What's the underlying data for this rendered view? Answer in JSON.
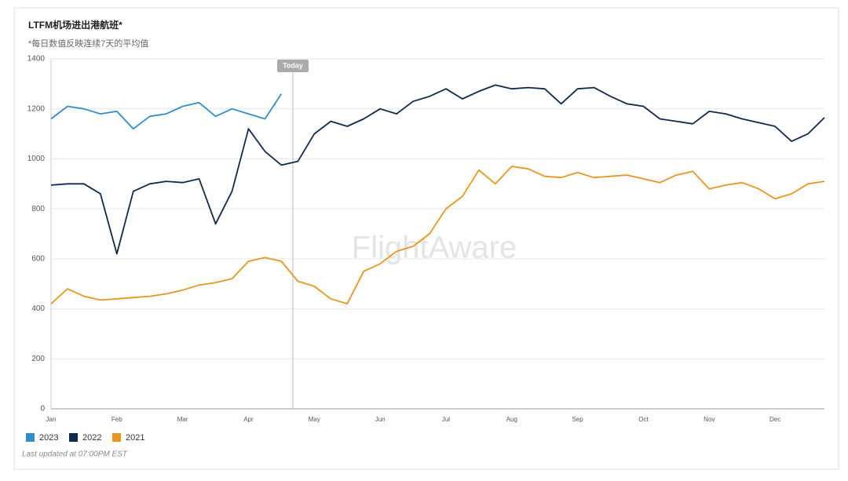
{
  "chart_data": {
    "type": "line",
    "title": "LTFM机场进出港航班*",
    "subtitle": "*每日数值反映连续7天的平均值",
    "footnote": "Last updated at 07:00PM EST",
    "watermark": "FlightAware",
    "annotation": "Today",
    "categories": [
      "Jan",
      null,
      null,
      null,
      "Feb",
      null,
      null,
      null,
      "Mar",
      null,
      null,
      null,
      "Apr",
      null,
      null,
      null,
      "May",
      null,
      null,
      null,
      "Jun",
      null,
      null,
      null,
      "Jul",
      null,
      null,
      null,
      "Aug",
      null,
      null,
      null,
      "Sep",
      null,
      null,
      null,
      "Oct",
      null,
      null,
      null,
      "Nov",
      null,
      null,
      null,
      "Dec",
      null,
      null,
      null
    ],
    "series": [
      {
        "name": "2023",
        "color": "#2e8fcf",
        "values": [
          1160,
          1210,
          1200,
          1180,
          1190,
          1120,
          1170,
          1180,
          1210,
          1225,
          1170,
          1200,
          1180,
          1160,
          1260,
          null,
          null,
          null,
          null,
          null,
          null,
          null,
          null,
          null,
          null,
          null,
          null,
          null,
          null,
          null,
          null,
          null,
          null,
          null,
          null,
          null,
          null,
          null,
          null,
          null,
          null,
          null,
          null,
          null,
          null,
          null,
          null,
          null
        ]
      },
      {
        "name": "2022",
        "color": "#0f2a4f",
        "values": [
          895,
          900,
          900,
          860,
          620,
          870,
          900,
          910,
          905,
          920,
          740,
          870,
          1120,
          1030,
          975,
          990,
          1100,
          1150,
          1130,
          1160,
          1200,
          1180,
          1230,
          1250,
          1280,
          1240,
          1270,
          1295,
          1280,
          1285,
          1280,
          1220,
          1280,
          1285,
          1250,
          1220,
          1210,
          1160,
          1150,
          1140,
          1190,
          1180,
          1160,
          1145,
          1130,
          1070,
          1100,
          1165
        ]
      },
      {
        "name": "2021",
        "color": "#e8961e",
        "values": [
          420,
          480,
          450,
          435,
          440,
          445,
          450,
          460,
          475,
          495,
          505,
          520,
          590,
          605,
          590,
          510,
          490,
          440,
          420,
          550,
          580,
          630,
          650,
          700,
          800,
          850,
          955,
          900,
          970,
          960,
          930,
          925,
          945,
          925,
          930,
          935,
          920,
          905,
          935,
          950,
          880,
          895,
          905,
          880,
          840,
          860,
          900,
          910
        ]
      }
    ],
    "ylim": [
      0,
      1400
    ],
    "yticks": [
      0,
      200,
      400,
      600,
      800,
      1000,
      1200,
      1400
    ],
    "grid": true
  }
}
